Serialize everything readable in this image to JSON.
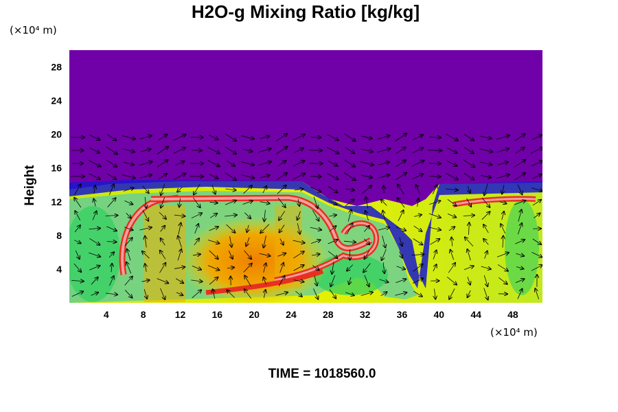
{
  "chart_data": {
    "type": "heatmap",
    "title": "H2O-g Mixing Ratio [kg/kg]",
    "ylabel": "Height",
    "xlabel": "",
    "x_unit_label": "(×10⁴ m)",
    "y_unit_label": "(×10⁴ m)",
    "x_ticks": [
      4,
      8,
      12,
      16,
      20,
      24,
      28,
      32,
      36,
      40,
      44,
      48
    ],
    "y_ticks": [
      4,
      8,
      12,
      16,
      20,
      24,
      28
    ],
    "xlim": [
      0,
      51.2
    ],
    "ylim": [
      0,
      30
    ],
    "overlay": "wind vectors",
    "time_label": "TIME = 1018560.0",
    "colors": {
      "top": "#7000a8",
      "deep_blue": "#1010d0",
      "cyan": "#30c0e0",
      "green": "#30d060",
      "yellow_green": "#c8e810",
      "yellow": "#f0f000",
      "orange": "#f0a000",
      "red": "#e83020",
      "pink": "#f0a0a0"
    }
  }
}
